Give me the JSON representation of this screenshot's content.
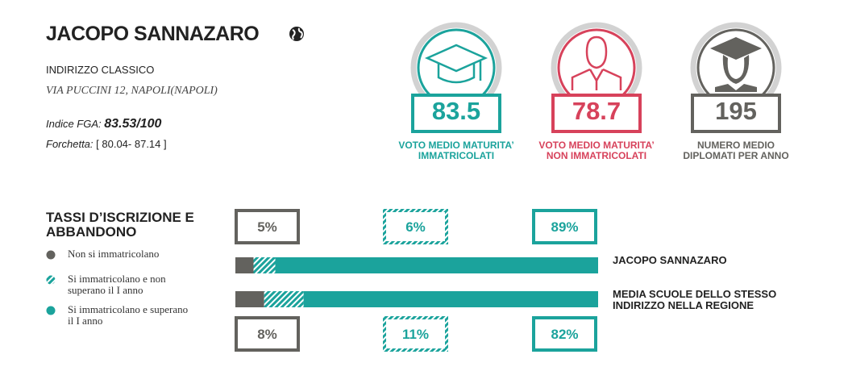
{
  "header": {
    "title": "JACOPO SANNAZARO",
    "track": "INDIRIZZO CLASSICO",
    "address": "VIA PUCCINI 12, NAPOLI(NAPOLI)",
    "fga_label": "Indice FGA:",
    "fga_value": "83.53/100",
    "range_label": "Forchetta:",
    "range_value": "[ 80.04- 87.14 ]"
  },
  "stats": [
    {
      "value": 83.5,
      "label": "VOTO MEDIO MATURITA’ IMMATRICOLATI",
      "color": "#1ba39c"
    },
    {
      "value": 78.7,
      "label": "VOTO MEDIO MATURITA’ NON IMMATRICOLATI",
      "color": "#d7425b"
    },
    {
      "value": 195,
      "label": "NUMERO MEDIO DIPLOMATI PER ANNO",
      "color": "#63625e"
    }
  ],
  "rates": {
    "title": "TASSI D’ISCRIZIONE E ABBANDONO",
    "legend": [
      {
        "label": "Non si immatricolano",
        "color": "#63625e"
      },
      {
        "label": "Si immatricolano e non superano il I anno",
        "color": "#1ba39c",
        "hatched": true
      },
      {
        "label": "Si immatricolano e superano il I anno",
        "color": "#1ba39c"
      }
    ],
    "rows": [
      {
        "name": "JACOPO SANNAZARO",
        "values": [
          5,
          6,
          89
        ],
        "value_labels": [
          "5%",
          "6%",
          "89%"
        ]
      },
      {
        "name": "MEDIA SCUOLE DELLO STESSO INDIRIZZO NELLA REGIONE",
        "values": [
          8,
          11,
          82
        ],
        "value_labels": [
          "8%",
          "11%",
          "82%"
        ]
      }
    ]
  }
}
